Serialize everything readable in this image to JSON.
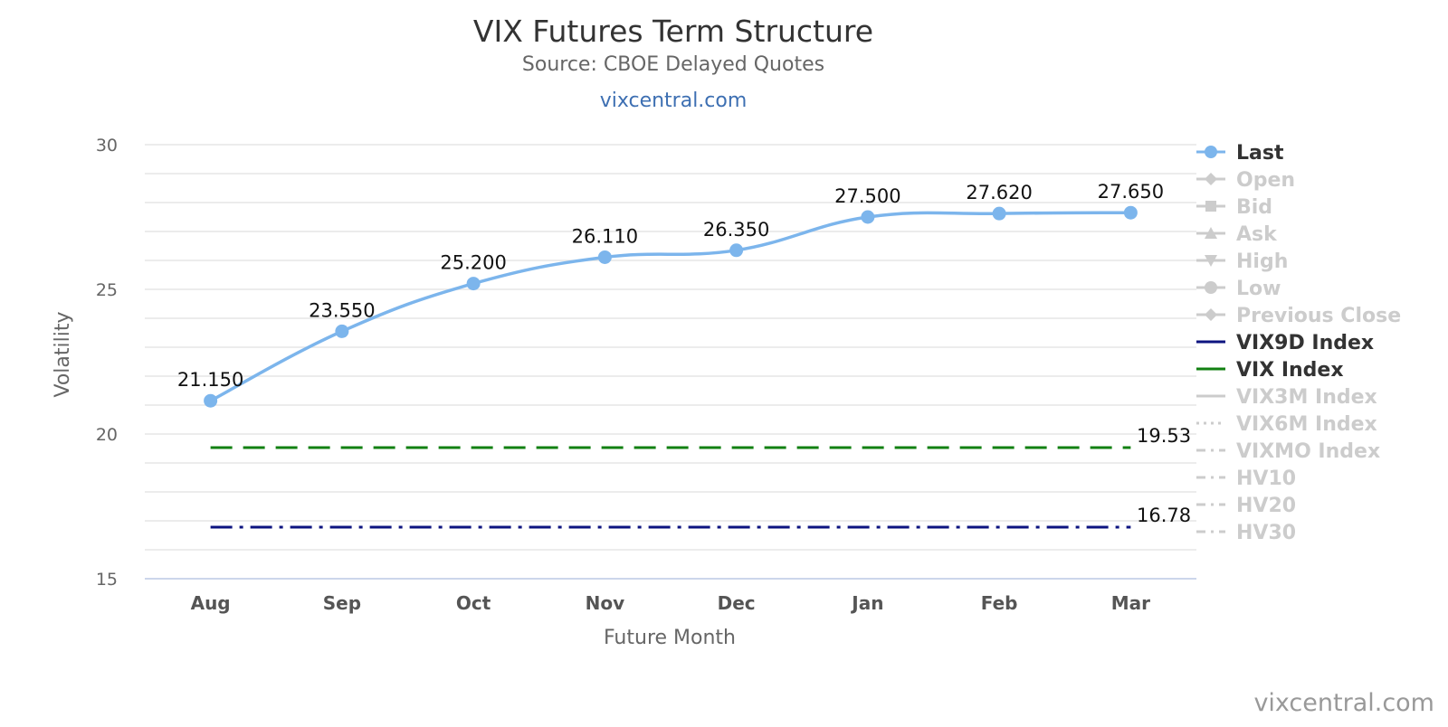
{
  "chart_data": {
    "type": "line",
    "title": "VIX Futures Term Structure",
    "subtitle": "Source: CBOE Delayed Quotes",
    "site_label": "vixcentral.com",
    "credit": "vixcentral.com",
    "xlabel": "Future Month",
    "ylabel": "Volatility",
    "ylim": [
      15,
      30
    ],
    "yticks": [
      15,
      20,
      25,
      30
    ],
    "grid": true,
    "legend_position": "right",
    "categories": [
      "Aug",
      "Sep",
      "Oct",
      "Nov",
      "Dec",
      "Jan",
      "Feb",
      "Mar"
    ],
    "series": [
      {
        "name": "Last",
        "color": "#7cb5ec",
        "values": [
          21.15,
          23.55,
          25.2,
          26.11,
          26.35,
          27.5,
          27.62,
          27.65
        ],
        "labels": [
          "21.150",
          "23.550",
          "25.200",
          "26.110",
          "26.350",
          "27.500",
          "27.620",
          "27.650"
        ]
      }
    ],
    "reference_lines": [
      {
        "name": "VIX Index",
        "value": 19.53,
        "label": "19.53",
        "color": "#128012",
        "dash": "dash"
      },
      {
        "name": "VIX9D Index",
        "value": 16.78,
        "label": "16.78",
        "color": "#0d1480",
        "dash": "dashdot"
      }
    ],
    "legend": [
      {
        "name": "Last",
        "symbol": "circle",
        "line": "solid",
        "active": true,
        "color": "#7cb5ec"
      },
      {
        "name": "Open",
        "symbol": "diamond",
        "line": "solid",
        "active": false
      },
      {
        "name": "Bid",
        "symbol": "square",
        "line": "solid",
        "active": false
      },
      {
        "name": "Ask",
        "symbol": "triangle",
        "line": "solid",
        "active": false
      },
      {
        "name": "High",
        "symbol": "triangle-down",
        "line": "solid",
        "active": false
      },
      {
        "name": "Low",
        "symbol": "circle",
        "line": "solid",
        "active": false
      },
      {
        "name": "Previous Close",
        "symbol": "diamond",
        "line": "solid",
        "active": false
      },
      {
        "name": "VIX9D Index",
        "symbol": "none",
        "line": "solid",
        "active": true,
        "color": "#0d1480"
      },
      {
        "name": "VIX Index",
        "symbol": "none",
        "line": "solid",
        "active": true,
        "color": "#128012"
      },
      {
        "name": "VIX3M Index",
        "symbol": "none",
        "line": "solid",
        "active": false
      },
      {
        "name": "VIX6M Index",
        "symbol": "none",
        "line": "dotted",
        "active": false
      },
      {
        "name": "VIXMO Index",
        "symbol": "none",
        "line": "dashdot",
        "active": false
      },
      {
        "name": "HV10",
        "symbol": "none",
        "line": "dashdot",
        "active": false
      },
      {
        "name": "HV20",
        "symbol": "none",
        "line": "dashdot",
        "active": false
      },
      {
        "name": "HV30",
        "symbol": "none",
        "line": "dashdot",
        "active": false
      }
    ],
    "colors": {
      "inactive": "#cccccc",
      "active_text": "#333333",
      "grid": "#e6e6e6",
      "axis": "#ccd6eb"
    }
  }
}
